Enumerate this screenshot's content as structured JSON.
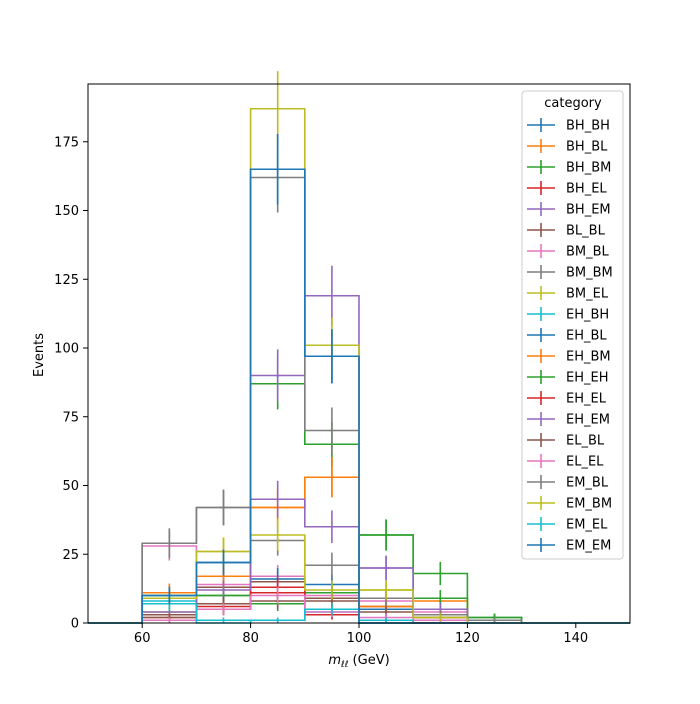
{
  "chart_data": {
    "type": "histogram",
    "title": "",
    "xlabel": "m_{ℓℓ} (GeV)",
    "ylabel": "Events",
    "xlim": [
      50,
      150
    ],
    "ylim": [
      0,
      196
    ],
    "grid": false,
    "legend_title": "category",
    "legend_position": "top-right",
    "x_ticks": [
      60,
      80,
      100,
      120,
      140
    ],
    "y_ticks": [
      0,
      25,
      50,
      75,
      100,
      125,
      150,
      175
    ],
    "bin_edges": [
      50,
      60,
      70,
      80,
      90,
      100,
      110,
      120,
      130,
      140,
      150
    ],
    "series": [
      {
        "name": "BH_BH",
        "color": "#1f77b4",
        "values": [
          0,
          10,
          22,
          165,
          97,
          0,
          0,
          0,
          0,
          0
        ]
      },
      {
        "name": "BH_BL",
        "color": "#ff7f0e",
        "values": [
          0,
          11,
          17,
          42,
          53,
          6,
          2,
          0,
          0,
          0
        ]
      },
      {
        "name": "BH_BM",
        "color": "#2ca02c",
        "values": [
          0,
          10,
          10,
          87,
          65,
          32,
          18,
          2,
          0,
          0
        ]
      },
      {
        "name": "BH_EL",
        "color": "#d62728",
        "values": [
          0,
          2,
          5,
          11,
          3,
          1,
          0,
          0,
          0,
          0
        ]
      },
      {
        "name": "BH_EM",
        "color": "#9467bd",
        "values": [
          0,
          3,
          13,
          90,
          119,
          20,
          5,
          0,
          0,
          0
        ]
      },
      {
        "name": "BL_BL",
        "color": "#8c564b",
        "values": [
          0,
          3,
          13,
          15,
          9,
          6,
          2,
          0,
          0,
          0
        ]
      },
      {
        "name": "BM_BL",
        "color": "#e377c2",
        "values": [
          0,
          28,
          14,
          17,
          10,
          8,
          4,
          0,
          0,
          0
        ]
      },
      {
        "name": "BM_BM",
        "color": "#7f7f7f",
        "values": [
          0,
          29,
          42,
          162,
          70,
          9,
          5,
          1,
          0,
          0
        ]
      },
      {
        "name": "BM_EL",
        "color": "#bcbd22",
        "values": [
          0,
          4,
          26,
          187,
          101,
          12,
          2,
          0,
          0,
          0
        ]
      },
      {
        "name": "EH_BH",
        "color": "#17becf",
        "values": [
          0,
          8,
          0,
          1,
          4,
          0,
          0,
          0,
          0,
          0
        ]
      },
      {
        "name": "EH_BL",
        "color": "#1f77b4",
        "values": [
          0,
          9,
          22,
          16,
          14,
          5,
          5,
          0,
          0,
          0
        ]
      },
      {
        "name": "EH_BM",
        "color": "#ff7f0e",
        "values": [
          0,
          11,
          17,
          42,
          53,
          6,
          8,
          0,
          0,
          0
        ]
      },
      {
        "name": "EH_EH",
        "color": "#2ca02c",
        "values": [
          0,
          9,
          10,
          7,
          11,
          32,
          9,
          2,
          0,
          0
        ]
      },
      {
        "name": "EH_EL",
        "color": "#d62728",
        "values": [
          0,
          1,
          6,
          13,
          3,
          1,
          0,
          0,
          0,
          0
        ]
      },
      {
        "name": "EH_EM",
        "color": "#9467bd",
        "values": [
          0,
          4,
          12,
          45,
          35,
          20,
          5,
          0,
          0,
          0
        ]
      },
      {
        "name": "EL_BL",
        "color": "#8c564b",
        "values": [
          0,
          2,
          7,
          8,
          8,
          4,
          2,
          0,
          0,
          0
        ]
      },
      {
        "name": "EL_EL",
        "color": "#e377c2",
        "values": [
          0,
          1,
          5,
          10,
          4,
          2,
          1,
          0,
          0,
          0
        ]
      },
      {
        "name": "EM_BL",
        "color": "#7f7f7f",
        "values": [
          0,
          29,
          42,
          30,
          21,
          9,
          3,
          1,
          0,
          0
        ]
      },
      {
        "name": "EM_BM",
        "color": "#bcbd22",
        "values": [
          0,
          9,
          26,
          32,
          12,
          12,
          2,
          0,
          0,
          0
        ]
      },
      {
        "name": "EM_EL",
        "color": "#17becf",
        "values": [
          0,
          7,
          1,
          1,
          5,
          1,
          0,
          0,
          0,
          0
        ]
      },
      {
        "name": "EM_EM",
        "color": "#1f77b4",
        "values": [
          0,
          10,
          22,
          165,
          97,
          0,
          0,
          0,
          0,
          0
        ]
      }
    ]
  }
}
